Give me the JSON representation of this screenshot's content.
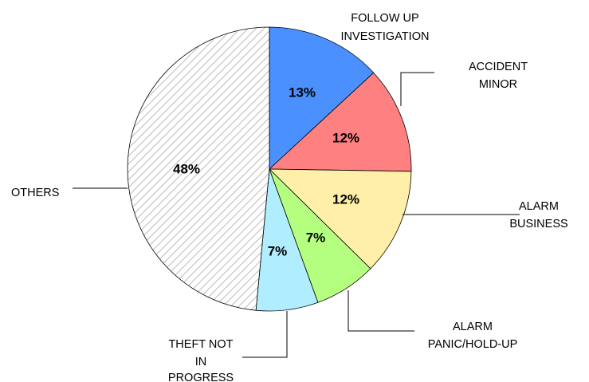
{
  "chart_data": {
    "type": "pie",
    "slices": [
      {
        "label": "FOLLOW UP INVESTIGATION",
        "label_lines": [
          "FOLLOW UP",
          "INVESTIGATION"
        ],
        "value": 13,
        "value_label": "13%",
        "color": "#4A90FF",
        "fill_style": "solid"
      },
      {
        "label": "ACCIDENT MINOR",
        "label_lines": [
          "ACCIDENT",
          "MINOR"
        ],
        "value": 12,
        "value_label": "12%",
        "color": "#FF8080",
        "fill_style": "solid"
      },
      {
        "label": "ALARM BUSINESS",
        "label_lines": [
          "ALARM",
          "BUSINESS"
        ],
        "value": 12,
        "value_label": "12%",
        "color": "#FFEFA8",
        "fill_style": "solid"
      },
      {
        "label": "ALARM PANIC/HOLD-UP",
        "label_lines": [
          "ALARM",
          "PANIC/HOLD-UP"
        ],
        "value": 7,
        "value_label": "7%",
        "color": "#B4FF80",
        "fill_style": "solid"
      },
      {
        "label": "THEFT NOT IN PROGRESS",
        "label_lines": [
          "THEFT NOT",
          "IN",
          "PROGRESS"
        ],
        "value": 7,
        "value_label": "7%",
        "color": "#B0EEFF",
        "fill_style": "solid"
      },
      {
        "label": "OTHERS",
        "label_lines": [
          "OTHERS"
        ],
        "value": 48,
        "value_label": "48%",
        "color": "#FFFFFF",
        "fill_style": "diagonal-hatch"
      }
    ],
    "start": "12 o'clock",
    "direction": "clockwise",
    "legend": "none (direct labels with leader lines)"
  }
}
